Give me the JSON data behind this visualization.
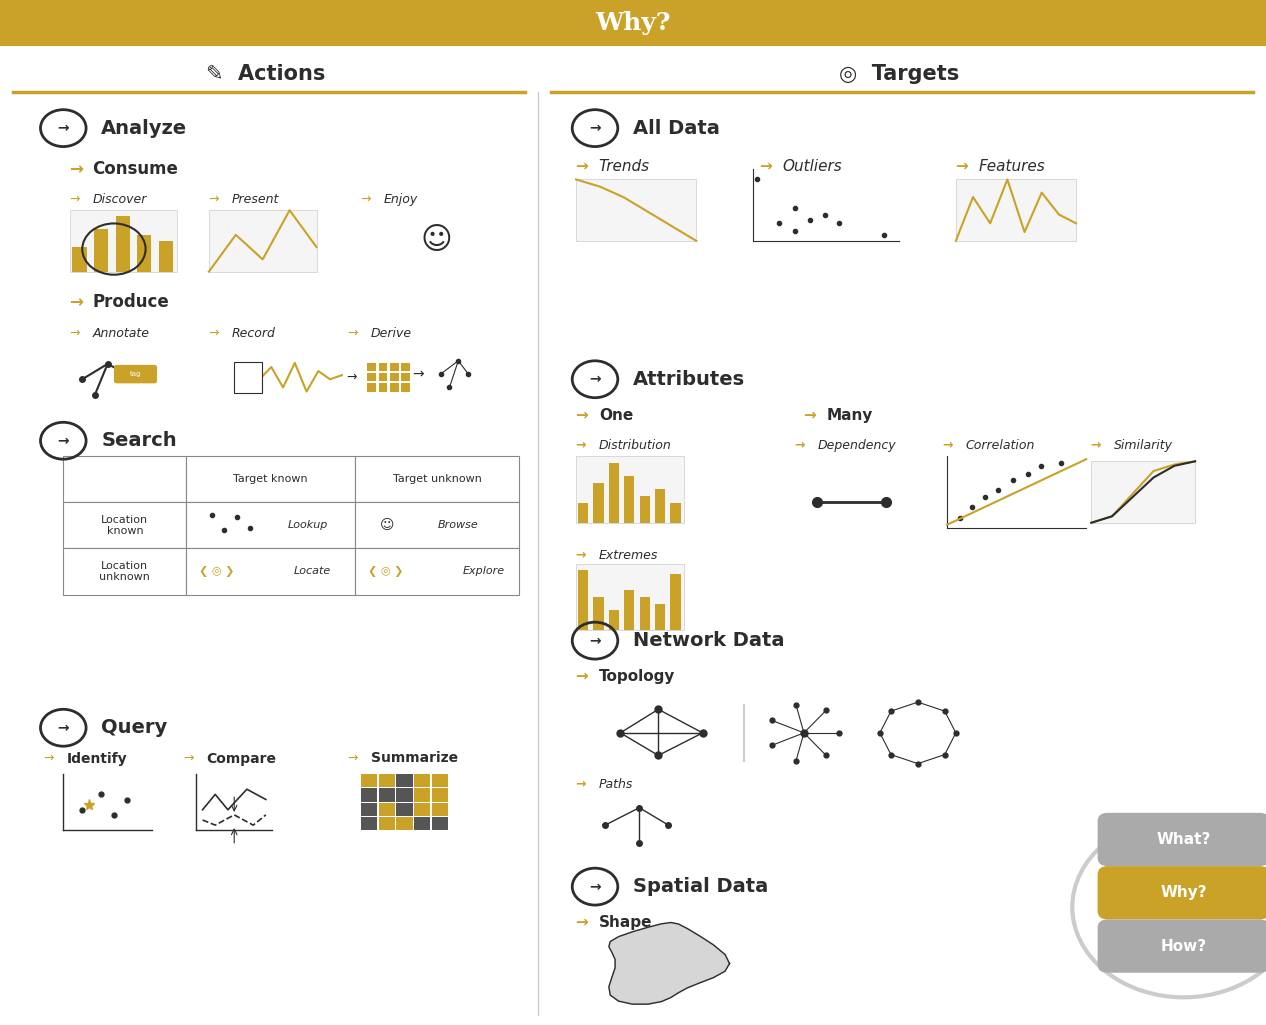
{
  "title": "Why?",
  "title_bg": "#C9A227",
  "title_color": "#FFFFFF",
  "bg_color": "#FFFFFF",
  "text_dark": "#2d2d2d",
  "gold": "#C9A227",
  "gray": "#AAAAAA",
  "light_gray": "#CCCCCC",
  "actions_header": "Actions",
  "targets_header": "Targets"
}
